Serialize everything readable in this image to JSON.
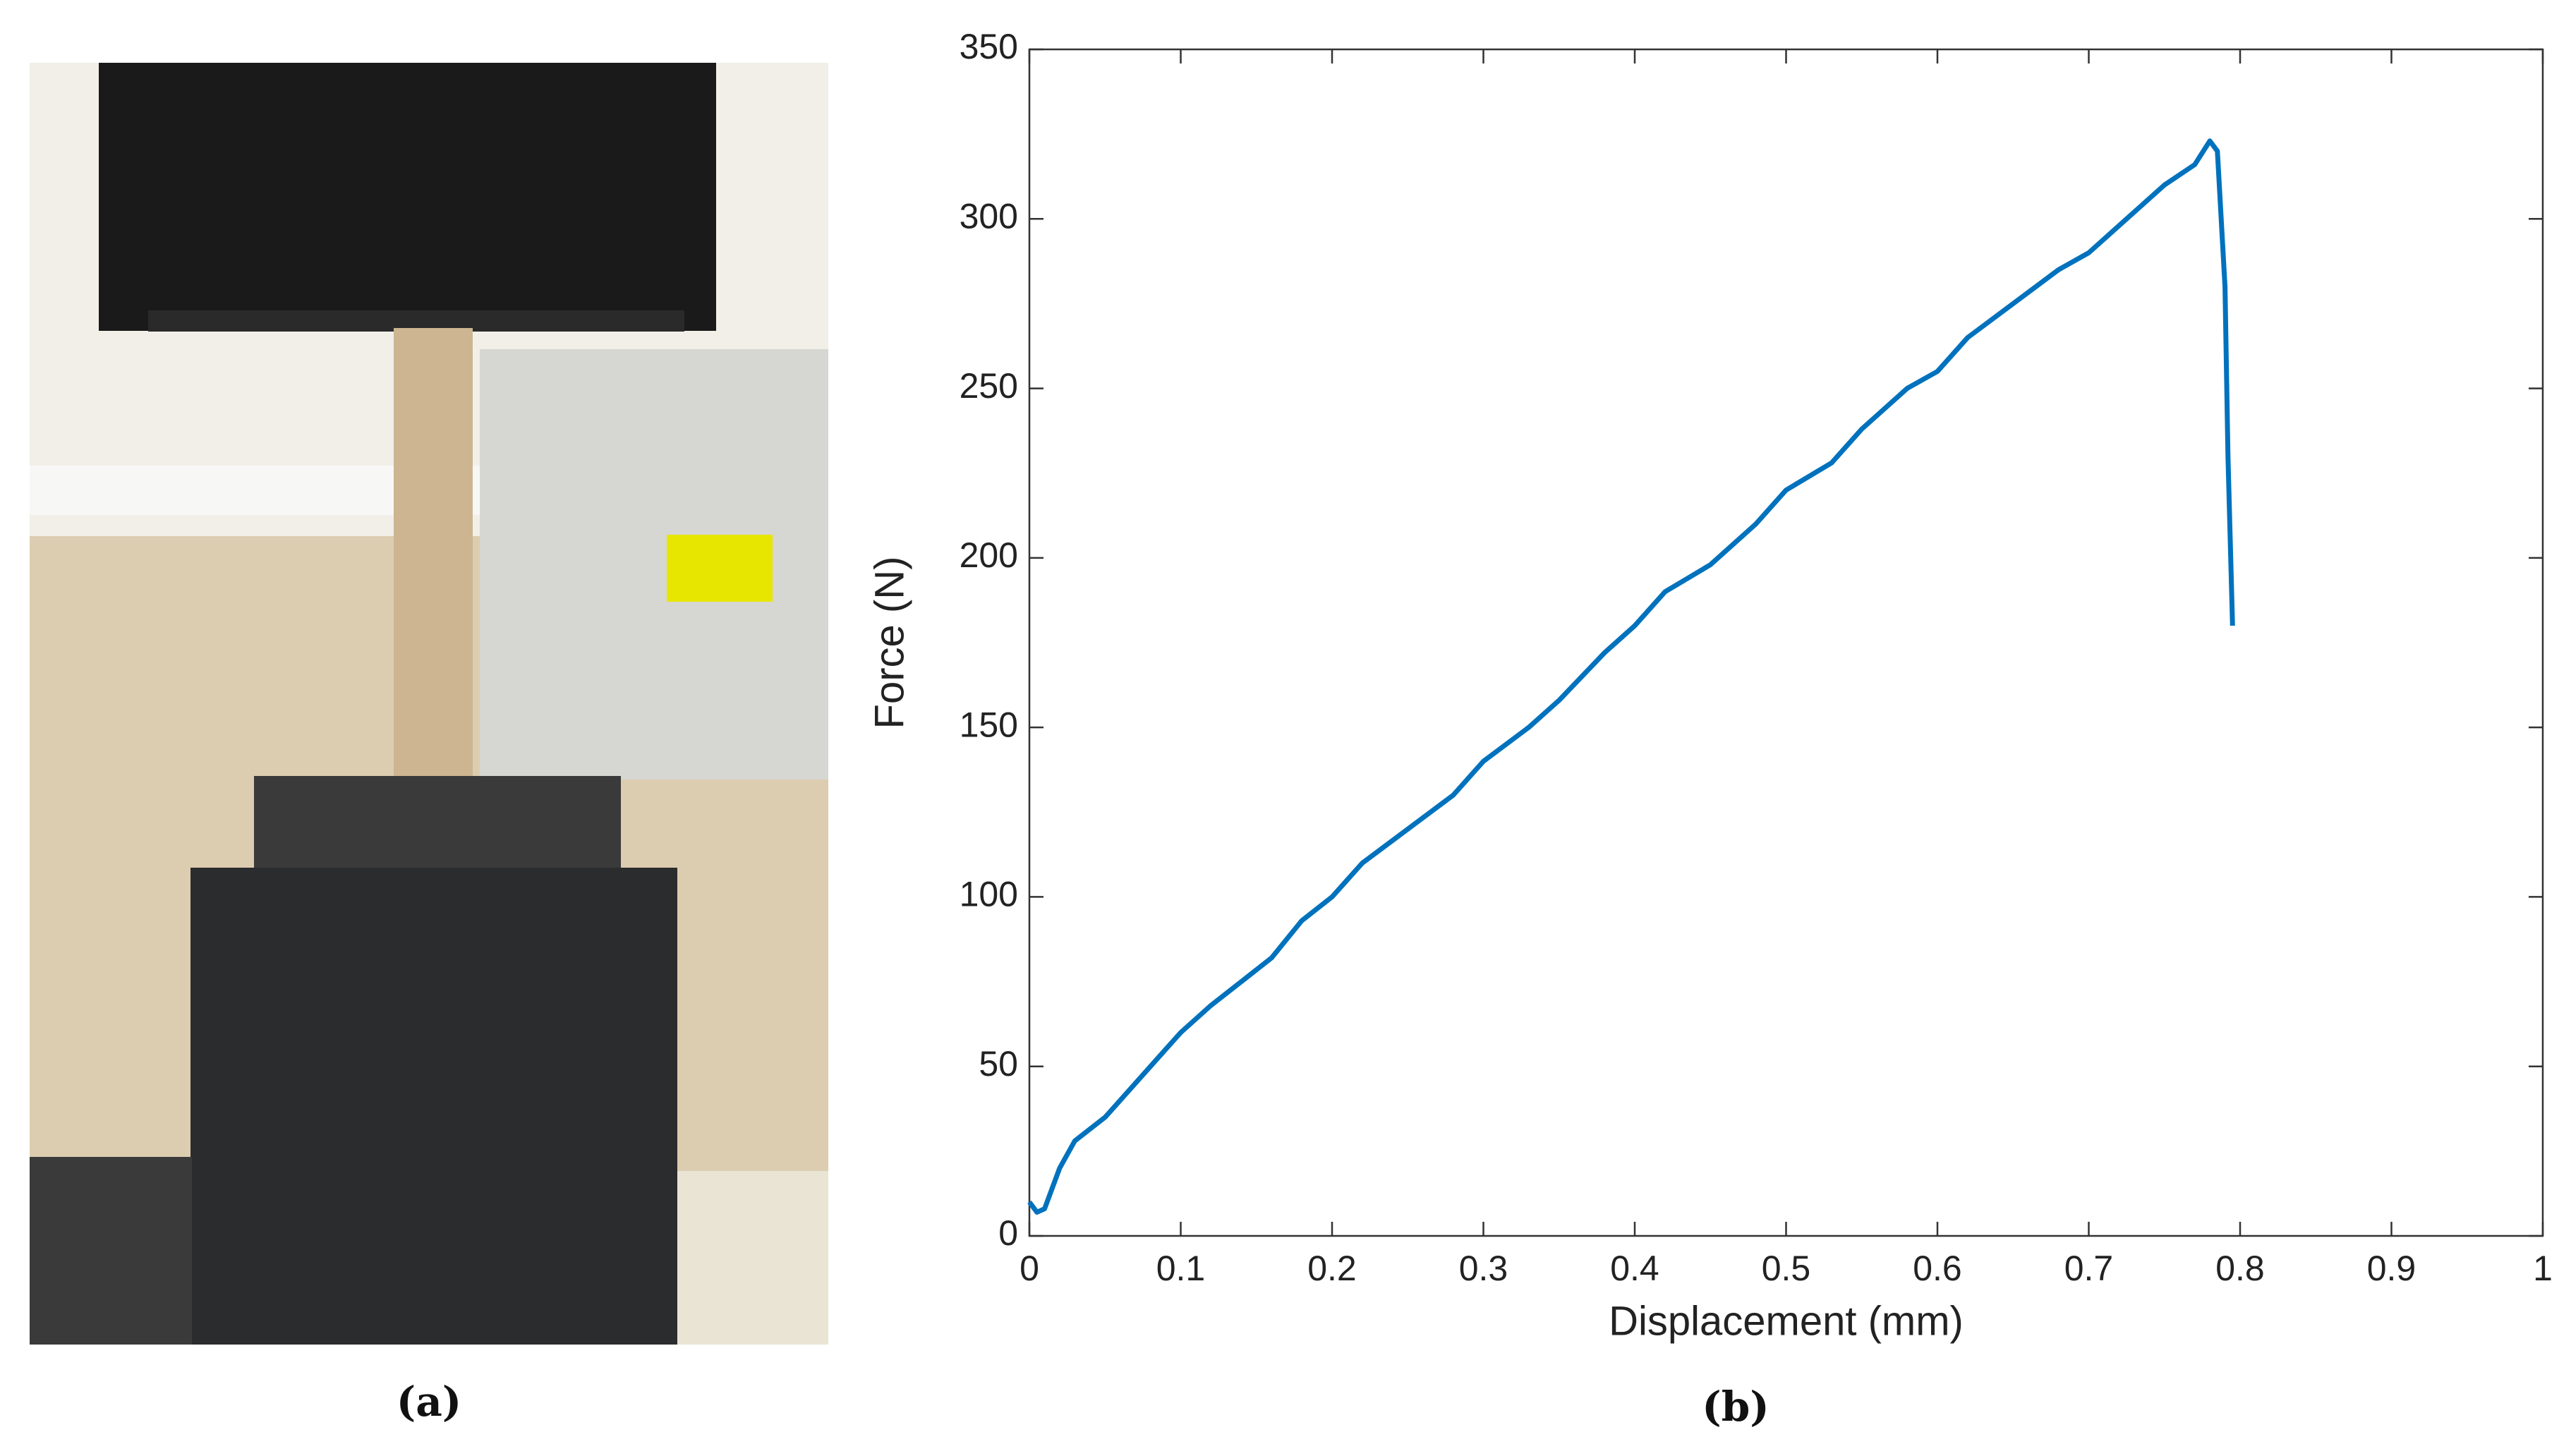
{
  "photo": {
    "label": "(a)"
  },
  "chart_data": {
    "type": "line",
    "label": "(b)",
    "xlabel": "Displacement (mm)",
    "ylabel": "Force (N)",
    "color": "#0072bd",
    "x": [
      0,
      0.005,
      0.01,
      0.02,
      0.03,
      0.05,
      0.07,
      0.09,
      0.1,
      0.12,
      0.14,
      0.16,
      0.18,
      0.2,
      0.22,
      0.25,
      0.28,
      0.3,
      0.33,
      0.35,
      0.38,
      0.4,
      0.42,
      0.45,
      0.48,
      0.5,
      0.53,
      0.55,
      0.58,
      0.6,
      0.62,
      0.65,
      0.68,
      0.7,
      0.72,
      0.75,
      0.77,
      0.78,
      0.785,
      0.79,
      0.792,
      0.795
    ],
    "values": [
      10,
      7,
      8,
      20,
      28,
      35,
      45,
      55,
      60,
      68,
      75,
      82,
      93,
      100,
      110,
      120,
      130,
      140,
      150,
      158,
      172,
      180,
      190,
      198,
      210,
      220,
      228,
      238,
      250,
      255,
      265,
      275,
      285,
      290,
      298,
      310,
      316,
      323,
      320,
      280,
      230,
      180
    ],
    "xlim": [
      0,
      1
    ],
    "xticks": [
      0,
      0.1,
      0.2,
      0.3,
      0.4,
      0.5,
      0.6,
      0.7,
      0.8,
      0.9,
      1
    ],
    "ylim": [
      0,
      350
    ],
    "yticks": [
      0,
      50,
      100,
      150,
      200,
      250,
      300,
      350
    ]
  }
}
